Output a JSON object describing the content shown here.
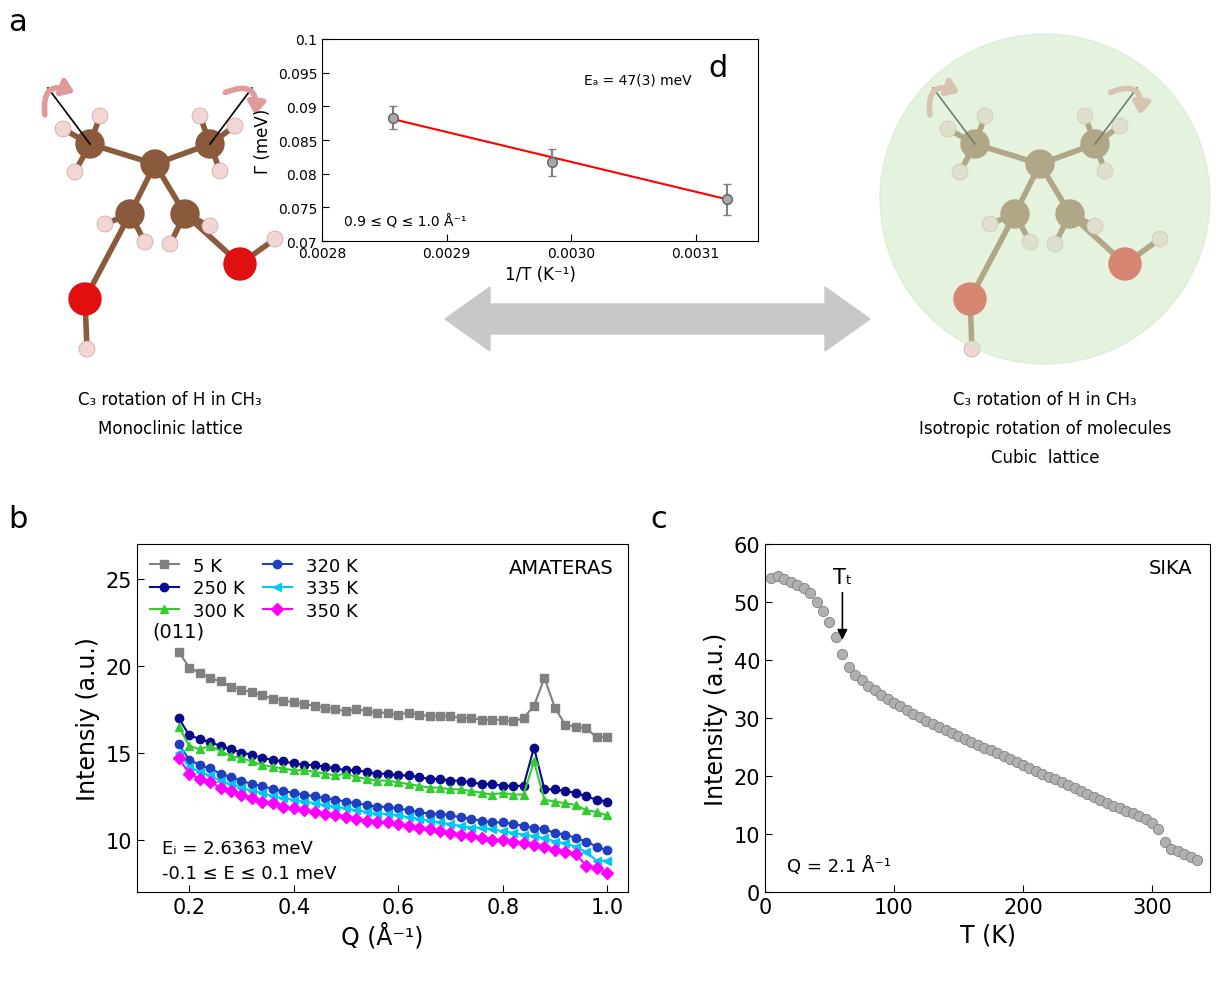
{
  "diagram": {
    "panel_label": "a",
    "left": {
      "lines": [
        "C₃ rotation of H in CH₃",
        "Monoclinic lattice"
      ]
    },
    "right": {
      "lines": [
        "C₃ rotation of H in CH₃",
        "Isotropic rotation of molecules",
        "Cubic  lattice"
      ]
    }
  },
  "chart_data": [
    {
      "type": "scatter",
      "panel_label": "d",
      "xlabel": "1/T (K⁻¹)",
      "ylabel": "Γ (meV)",
      "xlim": [
        0.0028,
        0.00315
      ],
      "ylim": [
        0.07,
        0.1
      ],
      "xticks": [
        0.0028,
        0.0029,
        {
          "value": 0.003,
          "label": "0.0030"
        },
        0.0031
      ],
      "yticks": [
        0.07,
        0.075,
        0.08,
        0.085,
        0.09,
        0.095,
        0.1
      ],
      "annotations": [
        "Eₐ = 47(3) meV",
        "0.9 ≤ Q ≤ 1.0 Å⁻¹"
      ],
      "series": [
        {
          "type": "scatter",
          "color": "#a9a9a9",
          "marker": "circle",
          "x": [
            0.002857,
            0.002985,
            0.003125
          ],
          "values": [
            0.0883,
            0.0817,
            0.0762
          ],
          "errors": [
            0.0017,
            0.002,
            0.0023
          ]
        },
        {
          "type": "line",
          "color": "#ff0000",
          "line_style": "solid",
          "x": [
            0.002857,
            0.003125
          ],
          "values": [
            0.0881,
            0.0762
          ]
        }
      ]
    },
    {
      "type": "line",
      "panel_label": "b",
      "xlabel": "Q (Å⁻¹)",
      "ylabel": "Intensiy (a.u.)",
      "xlim": [
        0.1,
        1.04
      ],
      "ylim": [
        7,
        27
      ],
      "xticks": [
        0.2,
        0.4,
        0.6,
        0.8,
        {
          "value": 1,
          "label": "1.0"
        }
      ],
      "yticks": [
        10,
        15,
        20,
        25
      ],
      "legend": "upper left",
      "annotations": [
        "AMATERAS",
        "Eᵢ = 2.6363 meV",
        "-0.1 ≤ E ≤ 0.1 meV"
      ],
      "peak_label": "(011)",
      "x": [
        0.18,
        0.2,
        0.22,
        0.24,
        0.26,
        0.28,
        0.3,
        0.32,
        0.34,
        0.36,
        0.38,
        0.4,
        0.42,
        0.44,
        0.46,
        0.48,
        0.5,
        0.52,
        0.54,
        0.56,
        0.58,
        0.6,
        0.62,
        0.64,
        0.66,
        0.68,
        0.7,
        0.72,
        0.74,
        0.76,
        0.78,
        0.8,
        0.82,
        0.84,
        0.86,
        0.88,
        0.9,
        0.92,
        0.94,
        0.96,
        0.98,
        1.0
      ],
      "series": [
        {
          "name": "5 K",
          "color": "#808080",
          "marker": "square",
          "values": [
            20.8,
            19.9,
            19.6,
            19.3,
            19.1,
            18.8,
            18.6,
            18.5,
            18.3,
            18.1,
            18.0,
            17.9,
            17.8,
            17.7,
            17.6,
            17.5,
            17.4,
            17.5,
            17.4,
            17.3,
            17.3,
            17.2,
            17.3,
            17.2,
            17.1,
            17.1,
            17.1,
            17.0,
            17.0,
            16.9,
            16.9,
            16.9,
            16.8,
            17.0,
            17.7,
            19.3,
            17.6,
            16.6,
            16.5,
            16.4,
            15.9,
            15.9
          ]
        },
        {
          "name": "250 K",
          "color": "#0a0a8c",
          "marker": "circle",
          "values": [
            17.0,
            16.0,
            15.8,
            15.6,
            15.4,
            15.2,
            15.0,
            14.9,
            14.7,
            14.6,
            14.5,
            14.4,
            14.3,
            14.3,
            14.2,
            14.1,
            14.0,
            14.0,
            13.9,
            13.8,
            13.8,
            13.7,
            13.7,
            13.6,
            13.5,
            13.5,
            13.4,
            13.4,
            13.3,
            13.2,
            13.2,
            13.1,
            13.1,
            13.1,
            15.3,
            12.9,
            12.9,
            12.8,
            12.7,
            12.5,
            12.3,
            12.2
          ]
        },
        {
          "name": "300 K",
          "color": "#33cc33",
          "marker": "triangle_up",
          "values": [
            16.5,
            15.4,
            15.2,
            15.4,
            15.1,
            14.8,
            14.7,
            14.5,
            14.3,
            14.2,
            14.1,
            14.0,
            14.0,
            13.9,
            13.8,
            13.7,
            13.8,
            13.6,
            13.5,
            13.4,
            13.4,
            13.3,
            13.2,
            13.1,
            13.0,
            13.0,
            12.9,
            12.9,
            12.8,
            12.7,
            12.6,
            12.7,
            12.6,
            12.6,
            14.5,
            12.3,
            12.2,
            12.1,
            12.0,
            11.7,
            11.6,
            11.4
          ]
        },
        {
          "name": "320 K",
          "color": "#1f3fbf",
          "marker": "circle",
          "values": [
            15.5,
            14.6,
            14.3,
            14.1,
            13.8,
            13.6,
            13.4,
            13.2,
            13.1,
            12.9,
            12.8,
            12.7,
            12.6,
            12.5,
            12.4,
            12.3,
            12.2,
            12.1,
            12.0,
            11.9,
            11.9,
            11.8,
            11.7,
            11.6,
            11.5,
            11.5,
            11.4,
            11.3,
            11.2,
            11.1,
            11.0,
            11.0,
            10.9,
            10.8,
            10.7,
            10.6,
            10.4,
            10.3,
            10.1,
            9.9,
            9.6,
            9.4
          ]
        },
        {
          "name": "335 K",
          "color": "#00c8f0",
          "marker": "triangle_left",
          "values": [
            15.0,
            14.2,
            13.9,
            13.7,
            13.4,
            13.2,
            13.0,
            12.8,
            12.7,
            12.5,
            12.4,
            12.3,
            12.2,
            12.1,
            12.0,
            11.9,
            11.8,
            11.7,
            11.6,
            11.5,
            11.5,
            11.4,
            11.3,
            11.2,
            11.1,
            11.0,
            10.9,
            10.8,
            10.7,
            10.7,
            10.6,
            10.5,
            10.4,
            10.3,
            10.2,
            10.1,
            9.9,
            9.8,
            9.6,
            9.3,
            8.8,
            8.8
          ]
        },
        {
          "name": "350 K",
          "color": "#ff00ff",
          "marker": "diamond",
          "values": [
            14.7,
            13.8,
            13.5,
            13.3,
            13.0,
            12.8,
            12.6,
            12.4,
            12.2,
            12.1,
            11.9,
            11.8,
            11.7,
            11.6,
            11.5,
            11.4,
            11.3,
            11.2,
            11.1,
            11.0,
            11.0,
            10.9,
            10.8,
            10.7,
            10.6,
            10.5,
            10.4,
            10.3,
            10.2,
            10.1,
            10.0,
            10.0,
            9.9,
            9.8,
            9.7,
            9.6,
            9.4,
            9.3,
            9.2,
            8.5,
            8.4,
            8.1
          ]
        }
      ]
    },
    {
      "type": "scatter",
      "panel_label": "c",
      "xlabel": "T (K)",
      "ylabel": "Intensity (a.u.)",
      "xlim": [
        0,
        345
      ],
      "ylim": [
        0,
        60
      ],
      "xticks": [
        0,
        100,
        200,
        300
      ],
      "yticks": [
        0,
        10,
        20,
        30,
        40,
        50,
        60
      ],
      "annotations": [
        "SIKA",
        "Q = 2.1 Å⁻¹"
      ],
      "marker_label": "Tₜ",
      "x": [
        5,
        10,
        15,
        20,
        25,
        30,
        35,
        40,
        45,
        50,
        55,
        60,
        65,
        70,
        75,
        80,
        85,
        90,
        95,
        100,
        105,
        110,
        115,
        120,
        125,
        130,
        135,
        140,
        145,
        150,
        155,
        160,
        165,
        170,
        175,
        180,
        185,
        190,
        195,
        200,
        205,
        210,
        215,
        220,
        225,
        230,
        235,
        240,
        245,
        250,
        255,
        260,
        265,
        270,
        275,
        280,
        285,
        290,
        295,
        300,
        305,
        310,
        315,
        320,
        325,
        330,
        335
      ],
      "series": [
        {
          "color": "#b0b0b0",
          "marker": "circle",
          "values": [
            54.2,
            54.5,
            54.0,
            53.4,
            53.0,
            52.5,
            51.5,
            50.0,
            48.5,
            46.5,
            44.0,
            41.0,
            38.8,
            37.5,
            36.5,
            35.6,
            34.8,
            34.0,
            33.3,
            32.6,
            32.0,
            31.3,
            30.7,
            30.1,
            29.5,
            29.0,
            28.4,
            27.9,
            27.4,
            26.9,
            26.4,
            25.9,
            25.4,
            24.9,
            24.4,
            23.9,
            23.4,
            22.9,
            22.4,
            21.9,
            21.4,
            20.9,
            20.4,
            19.9,
            19.4,
            18.9,
            18.4,
            17.9,
            17.4,
            16.9,
            16.4,
            15.9,
            15.4,
            14.9,
            14.4,
            14.0,
            13.6,
            13.1,
            12.6,
            11.9,
            10.8,
            8.6,
            7.4,
            7.0,
            6.5,
            6.0,
            5.6
          ]
        }
      ]
    }
  ]
}
